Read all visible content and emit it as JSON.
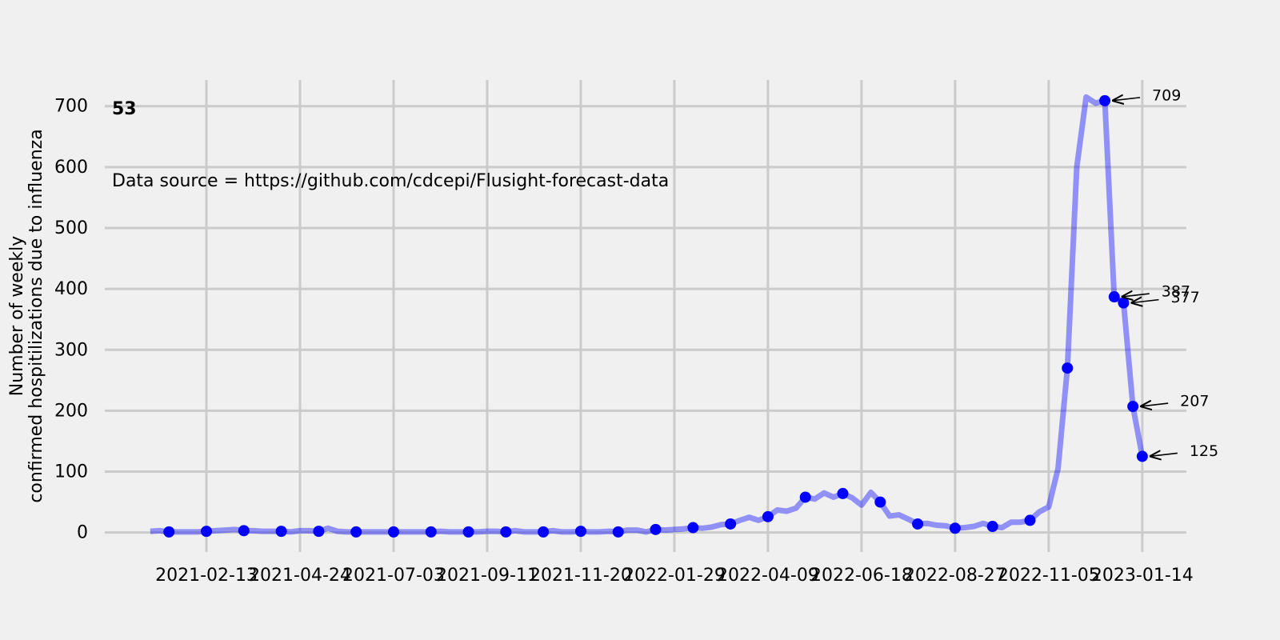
{
  "chart_data": {
    "type": "line",
    "title": "53",
    "subtitle": "Data source = https://github.com/cdcepi/Flusight-forecast-data",
    "ylabel": [
      "Number of weekly",
      "confirmed hospitilizations due to influenza"
    ],
    "xlim": [
      "2020-11-29",
      "2023-02-16"
    ],
    "xticks": [
      "2021-02-13",
      "2021-04-24",
      "2021-07-03",
      "2021-09-11",
      "2021-11-20",
      "2022-01-29",
      "2022-04-09",
      "2022-06-18",
      "2022-08-27",
      "2022-11-05",
      "2023-01-14"
    ],
    "ylim": [
      -32,
      743
    ],
    "yticks": [
      0,
      100,
      200,
      300,
      400,
      500,
      600,
      700
    ],
    "grid": true,
    "series": [
      {
        "style": "line",
        "color": "#0000ff",
        "opacity": 0.4,
        "x": [
          "2021-01-02",
          "2021-01-09",
          "2021-01-16",
          "2021-01-23",
          "2021-01-30",
          "2021-02-06",
          "2021-02-13",
          "2021-02-20",
          "2021-02-27",
          "2021-03-06",
          "2021-03-13",
          "2021-03-20",
          "2021-03-27",
          "2021-04-03",
          "2021-04-10",
          "2021-04-17",
          "2021-04-24",
          "2021-05-01",
          "2021-05-08",
          "2021-05-15",
          "2021-05-22",
          "2021-05-29",
          "2021-06-05",
          "2021-06-12",
          "2021-06-19",
          "2021-06-26",
          "2021-07-03",
          "2021-07-10",
          "2021-07-17",
          "2021-07-24",
          "2021-07-31",
          "2021-08-07",
          "2021-08-14",
          "2021-08-21",
          "2021-08-28",
          "2021-09-04",
          "2021-09-11",
          "2021-09-18",
          "2021-09-25",
          "2021-10-02",
          "2021-10-09",
          "2021-10-16",
          "2021-10-23",
          "2021-10-30",
          "2021-11-06",
          "2021-11-13",
          "2021-11-20",
          "2021-11-27",
          "2021-12-04",
          "2021-12-11",
          "2021-12-18",
          "2021-12-25",
          "2022-01-01",
          "2022-01-08",
          "2022-01-15",
          "2022-01-22",
          "2022-01-29",
          "2022-02-05",
          "2022-02-12",
          "2022-02-19",
          "2022-02-26",
          "2022-03-05",
          "2022-03-12",
          "2022-03-19",
          "2022-03-26",
          "2022-04-02",
          "2022-04-09",
          "2022-04-16",
          "2022-04-23",
          "2022-04-30",
          "2022-05-07",
          "2022-05-14",
          "2022-05-21",
          "2022-05-28",
          "2022-06-04",
          "2022-06-11",
          "2022-06-18",
          "2022-06-25",
          "2022-07-02",
          "2022-07-09",
          "2022-07-16",
          "2022-07-23",
          "2022-07-30",
          "2022-08-06",
          "2022-08-13",
          "2022-08-20",
          "2022-08-27",
          "2022-09-03",
          "2022-09-10",
          "2022-09-17",
          "2022-09-24",
          "2022-10-01",
          "2022-10-08",
          "2022-10-15",
          "2022-10-22",
          "2022-10-29",
          "2022-11-05",
          "2022-11-12",
          "2022-11-19",
          "2022-11-26",
          "2022-12-03",
          "2022-12-10",
          "2022-12-17",
          "2022-12-24",
          "2022-12-31",
          "2023-01-07",
          "2023-01-14"
        ],
        "values": [
          2,
          3,
          1,
          1,
          1,
          1,
          2,
          3,
          4,
          5,
          3,
          3,
          2,
          2,
          2,
          1,
          3,
          3,
          2,
          7,
          2,
          1,
          1,
          1,
          1,
          1,
          1,
          1,
          1,
          1,
          1,
          2,
          1,
          1,
          1,
          1,
          2,
          2,
          1,
          3,
          1,
          1,
          1,
          3,
          1,
          1,
          2,
          1,
          1,
          2,
          1,
          4,
          4,
          1,
          5,
          4,
          5,
          6,
          8,
          7,
          9,
          13,
          14,
          20,
          25,
          20,
          26,
          37,
          35,
          40,
          58,
          55,
          65,
          58,
          64,
          57,
          45,
          66,
          50,
          27,
          29,
          22,
          14,
          15,
          12,
          11,
          7,
          8,
          10,
          15,
          10,
          8,
          17,
          17,
          20,
          34,
          42,
          105,
          270,
          600,
          715,
          705,
          709,
          387,
          377,
          207,
          125
        ]
      },
      {
        "style": "markers",
        "color": "#0000ff",
        "opacity": 1,
        "x": [
          "2021-01-16",
          "2021-02-13",
          "2021-03-13",
          "2021-04-10",
          "2021-05-08",
          "2021-06-05",
          "2021-07-03",
          "2021-07-31",
          "2021-08-28",
          "2021-09-25",
          "2021-10-23",
          "2021-11-20",
          "2021-12-18",
          "2022-01-15",
          "2022-02-12",
          "2022-03-12",
          "2022-04-09",
          "2022-05-07",
          "2022-06-04",
          "2022-07-02",
          "2022-07-30",
          "2022-08-27",
          "2022-09-24",
          "2022-10-22",
          "2022-11-19",
          "2022-12-17",
          "2022-12-24",
          "2022-12-31",
          "2023-01-07",
          "2023-01-14"
        ],
        "values": [
          1,
          2,
          3,
          2,
          2,
          1,
          1,
          1,
          1,
          1,
          1,
          2,
          1,
          5,
          8,
          14,
          26,
          58,
          64,
          50,
          14,
          7,
          10,
          20,
          270,
          709,
          387,
          377,
          207,
          125
        ]
      }
    ],
    "annotations": [
      {
        "text": "709",
        "x": "2022-12-17",
        "y": 709
      },
      {
        "text": "387",
        "x": "2022-12-24",
        "y": 387
      },
      {
        "text": "377",
        "x": "2022-12-31",
        "y": 377
      },
      {
        "text": "207",
        "x": "2023-01-07",
        "y": 207
      },
      {
        "text": "125",
        "x": "2023-01-14",
        "y": 125
      }
    ]
  }
}
